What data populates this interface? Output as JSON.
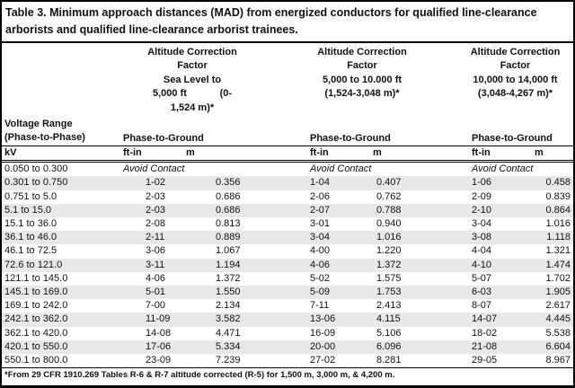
{
  "title": "Table 3. Minimum approach distances (MAD) from energized conductors for qualified line-clearance arborists and qualified line-clearance arborist trainees.",
  "header": {
    "groups": [
      {
        "alt_lines": [
          "Altitude Correction",
          "Factor",
          "Sea Level to",
          "5,000 ft            (0-",
          "1,524 m)*"
        ]
      },
      {
        "alt_lines": [
          "Altitude Correction",
          "Factor",
          "5,000 to 10.000 ft",
          "(1,524-3,048 m)*"
        ]
      },
      {
        "alt_lines": [
          "Altitude Correction",
          "Factor",
          "10,000 to 14,000 ft",
          "(3,048-4,267 m)*"
        ]
      }
    ],
    "voltage_range_line1": "Voltage Range",
    "voltage_range_line2": "(Phase-to-Phase)",
    "ptg_label": "Phase-to-Ground",
    "kv_label": "kV",
    "ftin_label": "ft-in",
    "m_label": "m"
  },
  "avoid_row": {
    "voltage": "0.050 to 0.300",
    "label": "Avoid Contact"
  },
  "rows": [
    {
      "voltage": "0.301 to 0.750",
      "vals": [
        "1-02",
        "0.356",
        "1-04",
        "0.407",
        "1-06",
        "0.458"
      ]
    },
    {
      "voltage": "0.751 to 5.0",
      "vals": [
        "2-03",
        "0.686",
        "2-06",
        "0.762",
        "2-09",
        "0.839"
      ]
    },
    {
      "voltage": "5.1 to 15.0",
      "vals": [
        "2-03",
        "0.686",
        "2-07",
        "0.788",
        "2-10",
        "0.864"
      ]
    },
    {
      "voltage": "15.1 to 36.0",
      "vals": [
        "2-08",
        "0.813",
        "3-01",
        "0.940",
        "3-04",
        "1.016"
      ]
    },
    {
      "voltage": "36.1 to 46.0",
      "vals": [
        "2-11",
        "0.889",
        "3-04",
        "1.016",
        "3-08",
        "1.118"
      ]
    },
    {
      "voltage": "46.1 to 72.5",
      "vals": [
        "3-06",
        "1.067",
        "4-00",
        "1.220",
        "4-04",
        "1.321"
      ]
    },
    {
      "voltage": "72.6 to 121.0",
      "vals": [
        "3-11",
        "1.194",
        "4-06",
        "1.372",
        "4-10",
        "1.474"
      ]
    },
    {
      "voltage": "121.1 to 145.0",
      "vals": [
        "4-06",
        "1.372",
        "5-02",
        "1.575",
        "5-07",
        "1.702"
      ]
    },
    {
      "voltage": "145.1 to 169.0",
      "vals": [
        "5-01",
        "1.550",
        "5-09",
        "1.753",
        "6-03",
        "1.905"
      ]
    },
    {
      "voltage": "169.1 to 242.0",
      "vals": [
        "7-00",
        "2.134",
        "7-11",
        "2.413",
        "8-07",
        "2.617"
      ]
    },
    {
      "voltage": "242.1 to 362.0",
      "vals": [
        "11-09",
        "3.582",
        "13-06",
        "4.115",
        "14-07",
        "4.445"
      ]
    },
    {
      "voltage": "362.1 to 420.0",
      "vals": [
        "14-08",
        "4.471",
        "16-09",
        "5.106",
        "18-02",
        "5.538"
      ]
    },
    {
      "voltage": "420.1 to 550.0",
      "vals": [
        "17-06",
        "5.334",
        "20-00",
        "6.096",
        "21-08",
        "6.604"
      ]
    },
    {
      "voltage": "550.1 to 800.0",
      "vals": [
        "23-09",
        "7.239",
        "27-02",
        "8.281",
        "29-05",
        "8.967"
      ]
    }
  ],
  "footnote": "*From 29 CFR 1910.269 Tables R-6 & R-7 altitude corrected (R-5) for 1,500 m, 3,000 m, & 4,200 m.",
  "colors": {
    "stripe": "#e8e8e8",
    "border": "#000000",
    "text": "#111111"
  }
}
